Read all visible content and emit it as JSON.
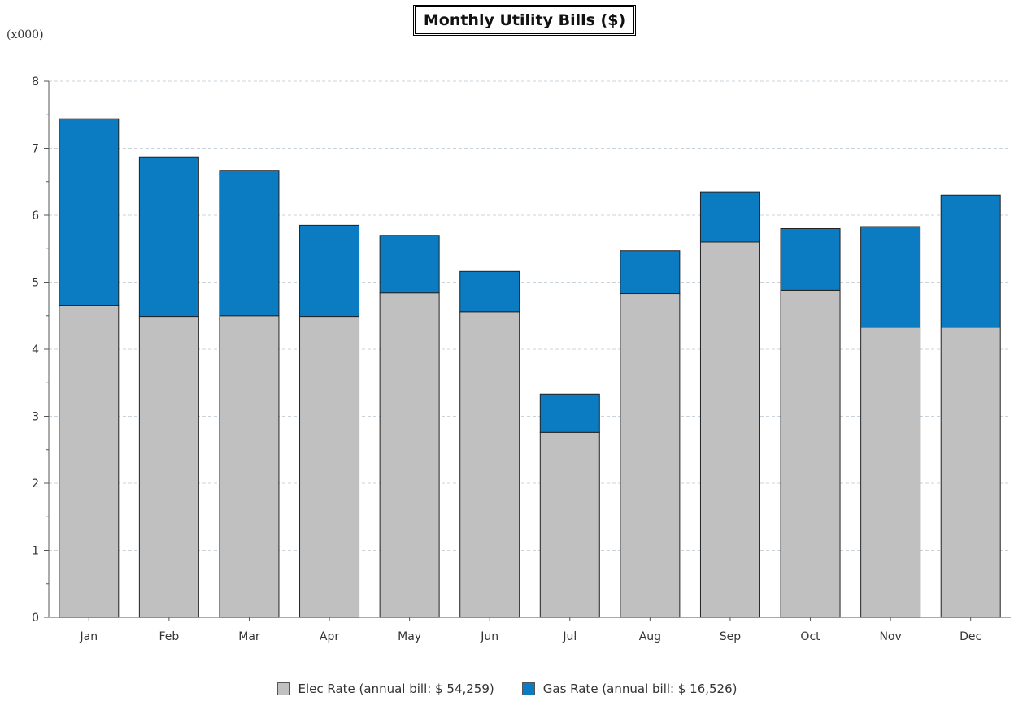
{
  "chart_data": {
    "type": "bar",
    "stacked": true,
    "title": "Monthly Utility Bills ($)",
    "y_unit_label": "(x000)",
    "categories": [
      "Jan",
      "Feb",
      "Mar",
      "Apr",
      "May",
      "Jun",
      "Jul",
      "Aug",
      "Sep",
      "Oct",
      "Nov",
      "Dec"
    ],
    "series": [
      {
        "name": "Elec Rate (annual bill: $ 54,259)",
        "color": "#c0c0c0",
        "values": [
          4.65,
          4.49,
          4.5,
          4.49,
          4.84,
          4.56,
          2.76,
          4.83,
          5.6,
          4.88,
          4.33,
          4.33
        ]
      },
      {
        "name": "Gas Rate (annual bill: $ 16,526)",
        "color": "#0b7cc1",
        "values": [
          2.79,
          2.38,
          2.17,
          1.36,
          0.86,
          0.6,
          0.57,
          0.64,
          0.75,
          0.92,
          1.5,
          1.97
        ]
      }
    ],
    "ylim": [
      0,
      8
    ],
    "yticks": [
      0,
      1,
      2,
      3,
      4,
      5,
      6,
      7,
      8
    ],
    "grid": true,
    "legend_position": "bottom"
  }
}
